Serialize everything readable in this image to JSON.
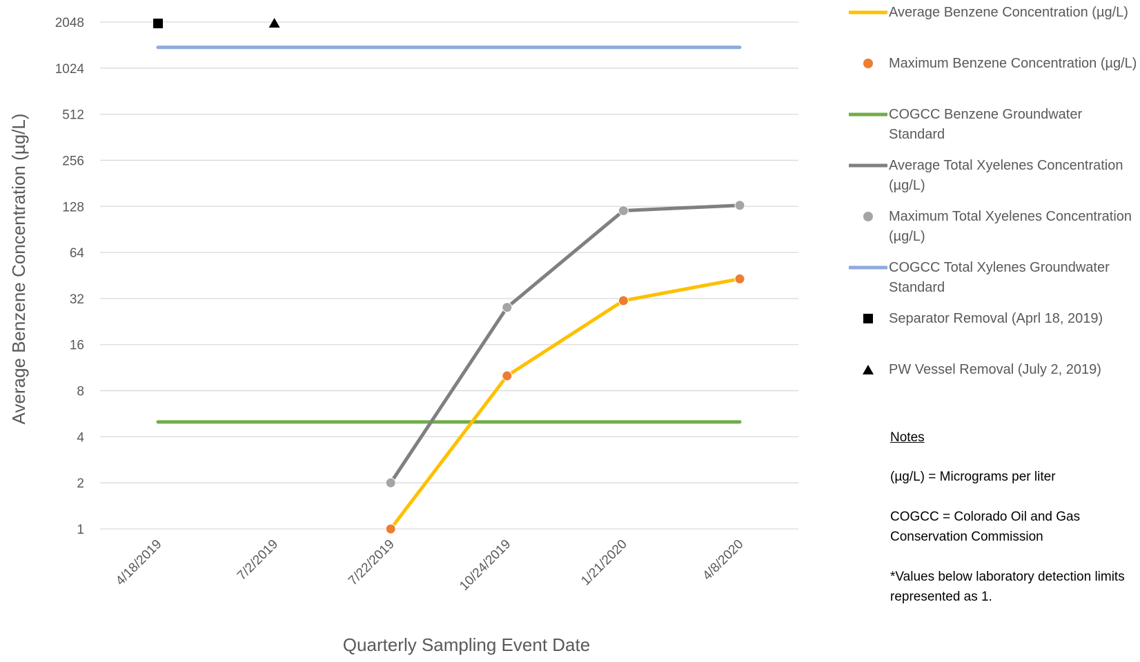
{
  "chart_data": {
    "type": "line",
    "xlabel": "Quarterly Sampling Event Date",
    "ylabel": "Average Benzene Concentration (µg/L)",
    "y_scale": "log2",
    "ylim": [
      1,
      2048
    ],
    "y_ticks": [
      "1",
      "2",
      "4",
      "8",
      "16",
      "32",
      "64",
      "128",
      "256",
      "512",
      "1024",
      "2048"
    ],
    "categories": [
      "4/18/2019",
      "7/2/2019",
      "7/22/2019",
      "10/24/2019",
      "1/21/2020",
      "4/8/2020"
    ],
    "grid": true,
    "legend_position": "right",
    "series": [
      {
        "name": "Average Benzene Concentration (µg/L)",
        "style": "line",
        "color": "#FFC000",
        "values": [
          null,
          null,
          1,
          10,
          31,
          43
        ]
      },
      {
        "name": "Maximum Benzene Concentration (µg/L)",
        "style": "marker",
        "marker": "circle",
        "color": "#ED7D31",
        "values": [
          null,
          null,
          1,
          10,
          31,
          43
        ]
      },
      {
        "name": "COGCC Benzene Groundwater Standard",
        "style": "line",
        "color": "#70AD47",
        "values": [
          5,
          5,
          5,
          5,
          5,
          5
        ]
      },
      {
        "name": "Average Total Xyelenes Concentration (µg/L)",
        "style": "line",
        "color": "#808080",
        "values": [
          null,
          null,
          2,
          28,
          120,
          130
        ]
      },
      {
        "name": "Maximum Total Xyelenes Concentration (µg/L)",
        "style": "marker",
        "marker": "circle",
        "color": "#A5A5A5",
        "values": [
          null,
          null,
          2,
          28,
          120,
          130
        ]
      },
      {
        "name": "COGCC Total Xylenes Groundwater Standard",
        "style": "line",
        "color": "#8FAADC",
        "values": [
          1400,
          1400,
          1400,
          1400,
          1400,
          1400
        ]
      },
      {
        "name": "Separator Removal (Aprl 18, 2019)",
        "style": "marker",
        "marker": "square",
        "color": "#000000",
        "values": [
          2048,
          null,
          null,
          null,
          null,
          null
        ]
      },
      {
        "name": "PW Vessel Removal (July 2, 2019)",
        "style": "marker",
        "marker": "triangle",
        "color": "#000000",
        "values": [
          null,
          2048,
          null,
          null,
          null,
          null
        ]
      }
    ]
  },
  "notes": {
    "title": "Notes",
    "lines": [
      "(µg/L) = Micrograms per liter",
      "COGCC = Colorado Oil and Gas Conservation Commission",
      "*Values below laboratory detection limits represented as 1."
    ]
  }
}
